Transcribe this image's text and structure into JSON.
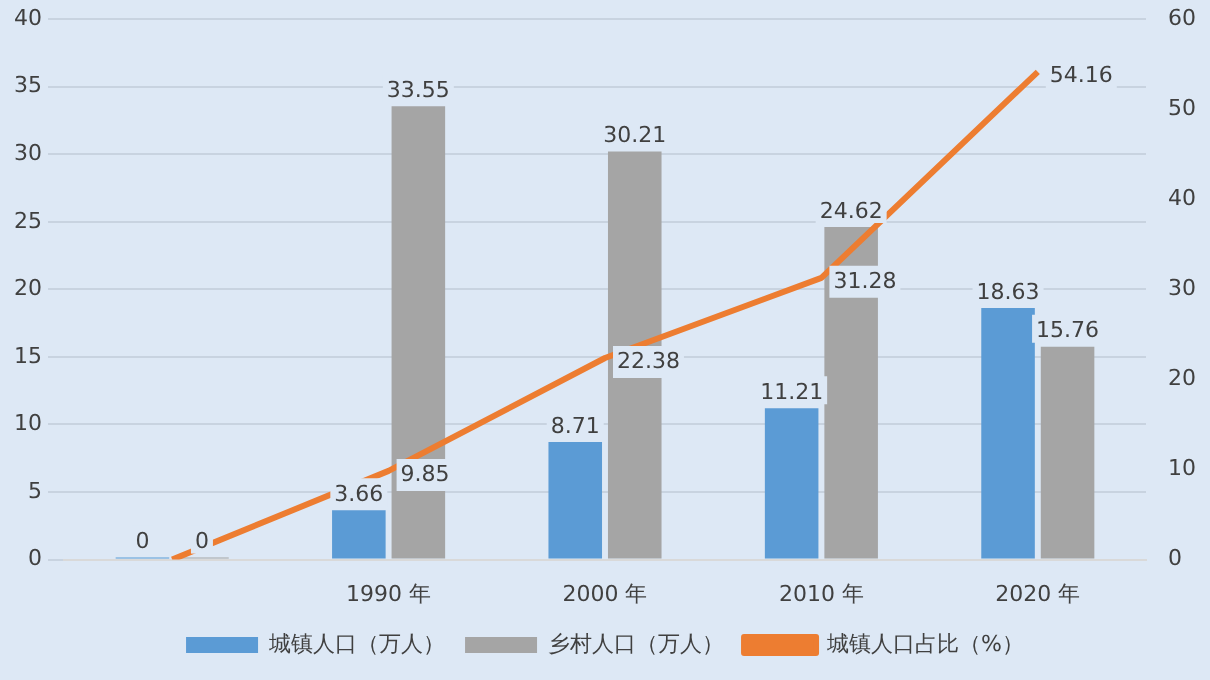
{
  "chart_data": {
    "type": "bar",
    "categories": [
      null,
      "1990 年",
      "2000 年",
      "2010 年",
      "2020 年"
    ],
    "series": [
      {
        "name": "城镇人口（万人）",
        "color": "#5b9bd5",
        "values": [
          0,
          3.66,
          8.71,
          11.21,
          18.63
        ],
        "value_labels": [
          "0",
          "3.66",
          "8.71",
          "11.21",
          "18.63"
        ]
      },
      {
        "name": "乡村人口（万人）",
        "color": "#a5a5a5",
        "values": [
          0,
          33.55,
          30.21,
          24.62,
          15.76
        ],
        "value_labels": [
          "0",
          "33.55",
          "30.21",
          "24.62",
          "15.76"
        ]
      },
      {
        "name": "城镇人口占比（%）",
        "type": "line",
        "axis": "y2",
        "color": "#ed7d31",
        "values": [
          0,
          9.85,
          22.38,
          31.28,
          54.16
        ],
        "value_labels": [
          null,
          "9.85",
          "22.38",
          "31.28",
          "54.16"
        ]
      }
    ],
    "ylim": [
      0,
      40
    ],
    "yticks": [
      0,
      5,
      10,
      15,
      20,
      25,
      30,
      35,
      40
    ],
    "y2lim": [
      0,
      60
    ],
    "y2ticks": [
      0,
      10,
      20,
      30,
      40,
      50,
      60
    ],
    "grid": "y",
    "legend": "bottom",
    "marker": "none",
    "line_style": "solid"
  }
}
